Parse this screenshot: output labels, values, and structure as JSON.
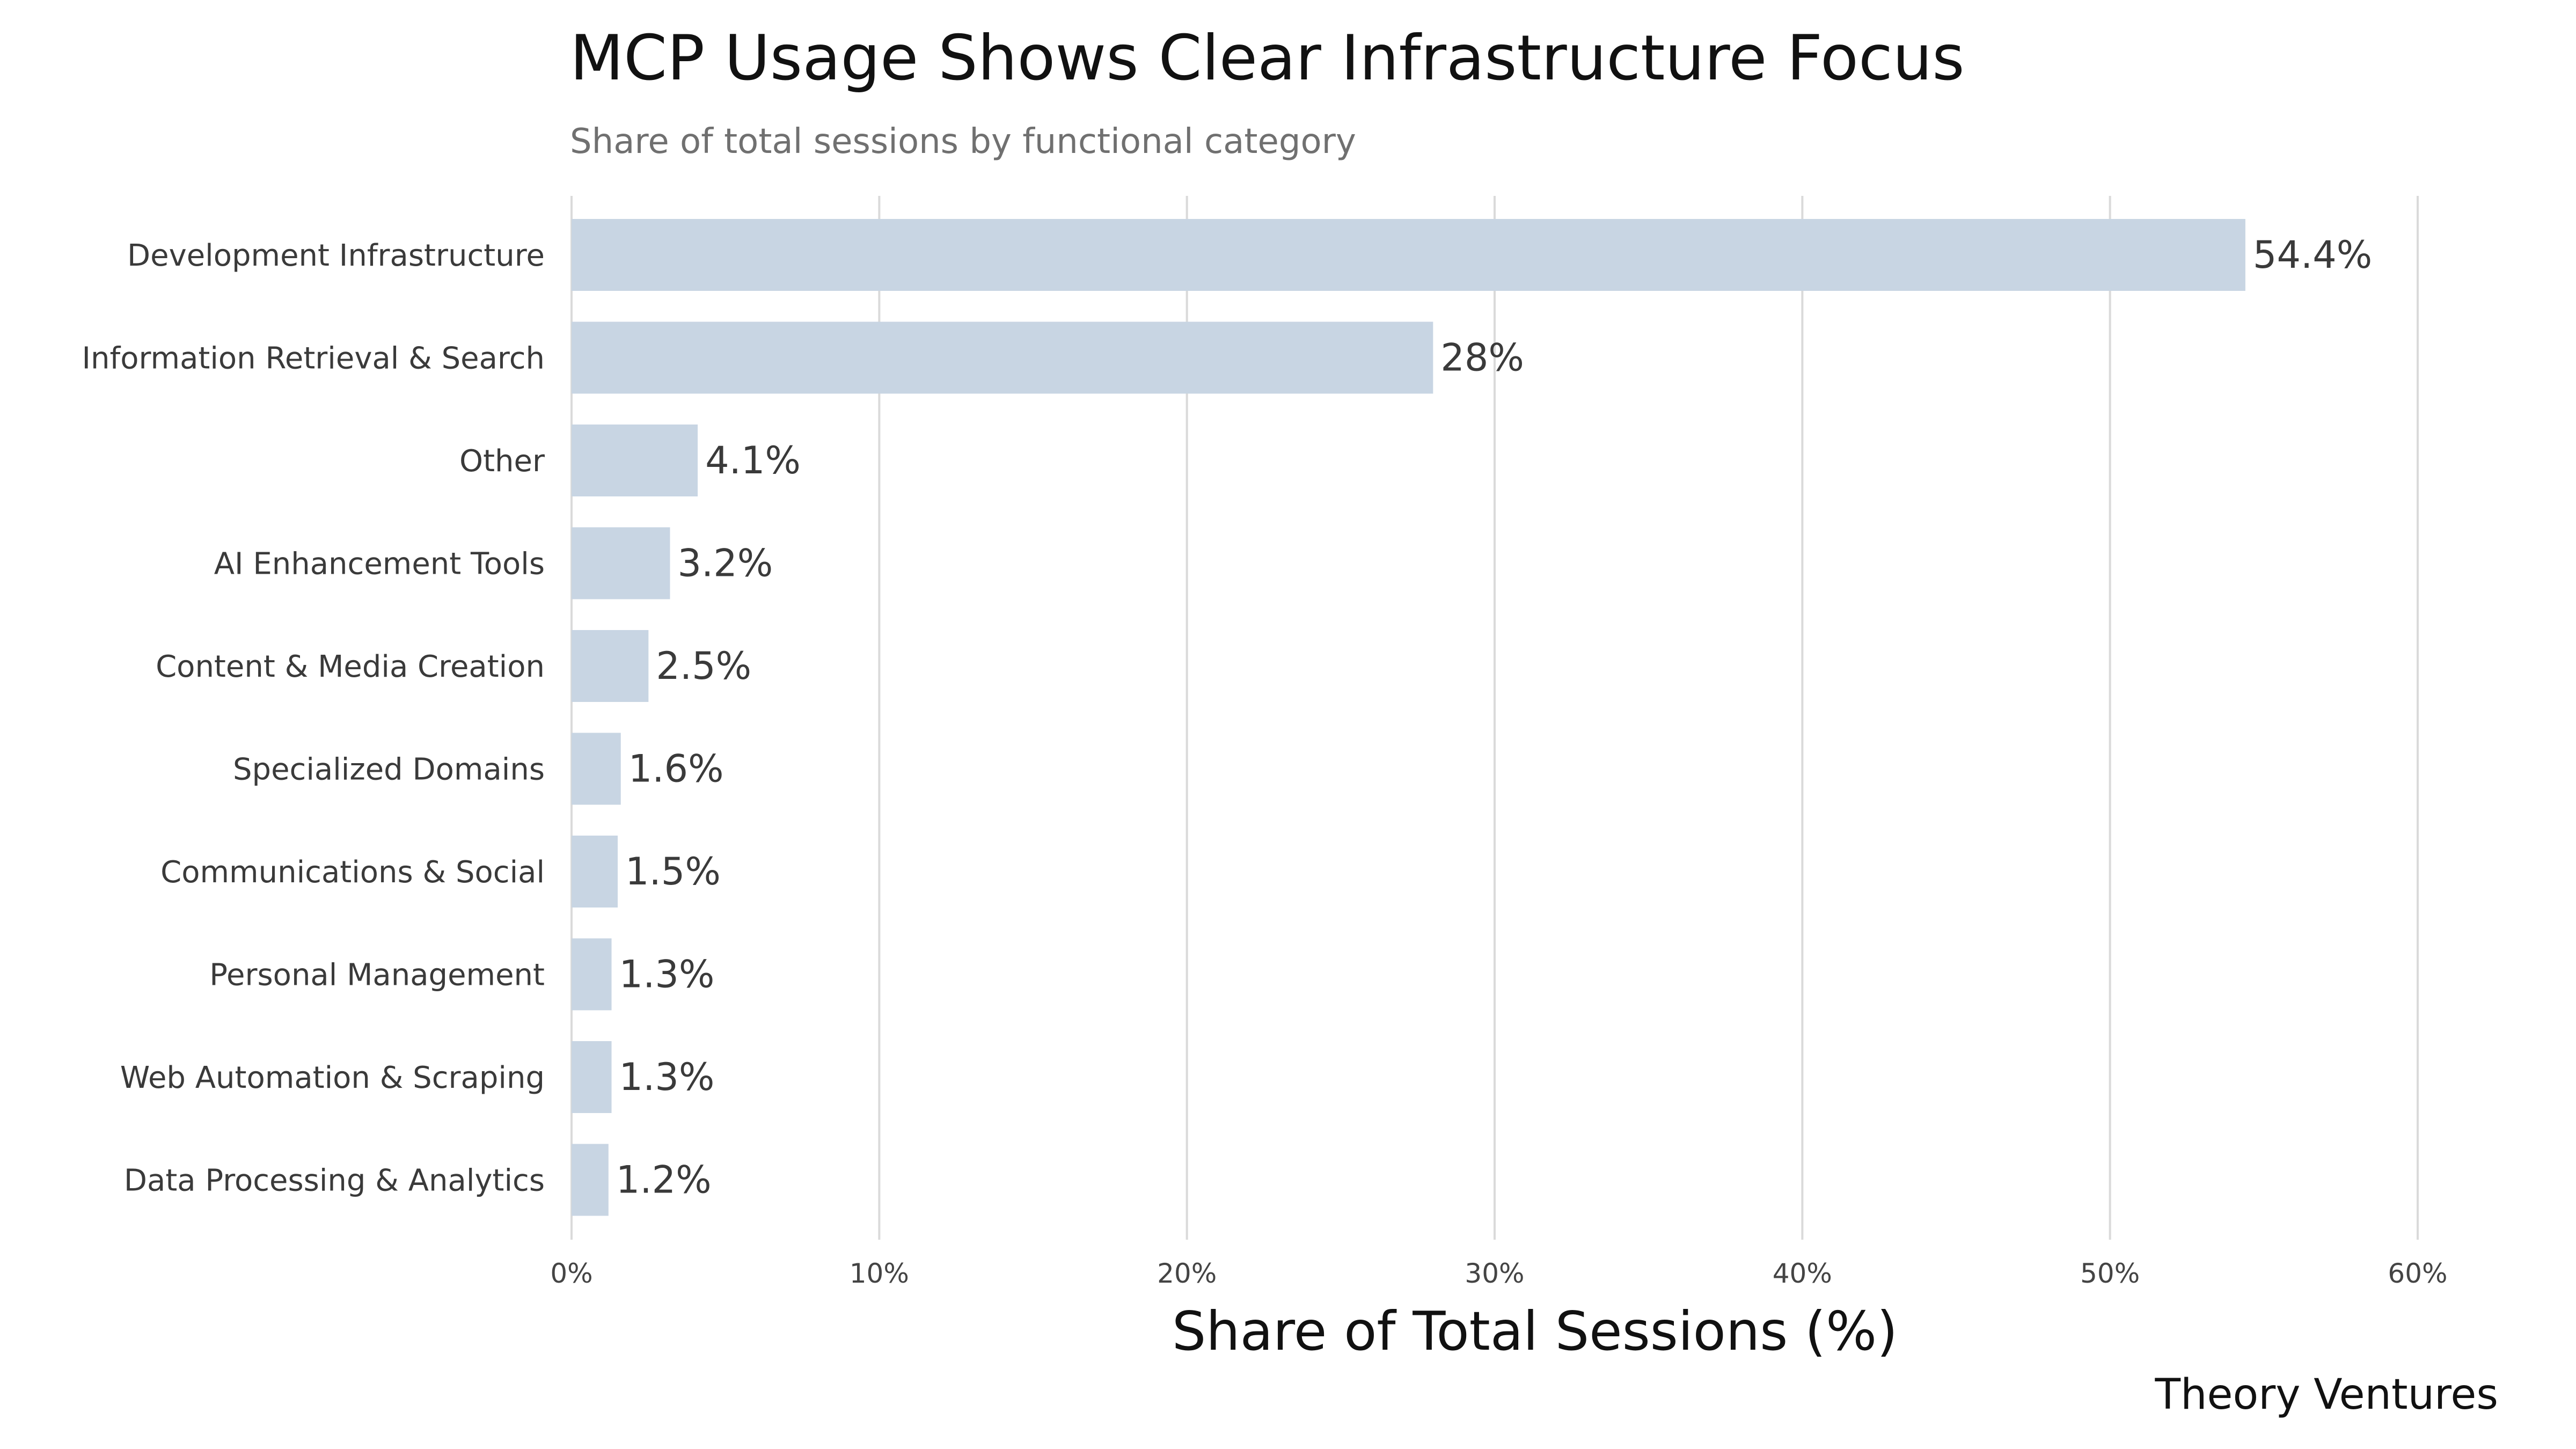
{
  "chart_data": {
    "type": "bar",
    "orientation": "horizontal",
    "title": "MCP Usage Shows Clear Infrastructure Focus",
    "subtitle": "Share of total sessions by functional category",
    "xlabel": "Share of Total Sessions (%)",
    "ylabel": "",
    "categories": [
      "Development Infrastructure",
      "Information Retrieval & Search",
      "Other",
      "AI Enhancement Tools",
      "Content & Media Creation",
      "Specialized Domains",
      "Communications & Social",
      "Personal Management",
      "Web Automation & Scraping",
      "Data Processing & Analytics"
    ],
    "values": [
      54.4,
      28,
      4.1,
      3.2,
      2.5,
      1.6,
      1.5,
      1.3,
      1.3,
      1.2
    ],
    "value_labels": [
      "54.4%",
      "28%",
      "4.1%",
      "3.2%",
      "2.5%",
      "1.6%",
      "1.5%",
      "1.3%",
      "1.3%",
      "1.2%"
    ],
    "xlim": [
      0,
      60
    ],
    "xticks": [
      0,
      10,
      20,
      30,
      40,
      50,
      60
    ],
    "xtick_labels": [
      "0%",
      "10%",
      "20%",
      "30%",
      "40%",
      "50%",
      "60%"
    ],
    "grid": true,
    "bar_color": "#c8d5e3",
    "source": "Theory Ventures"
  }
}
